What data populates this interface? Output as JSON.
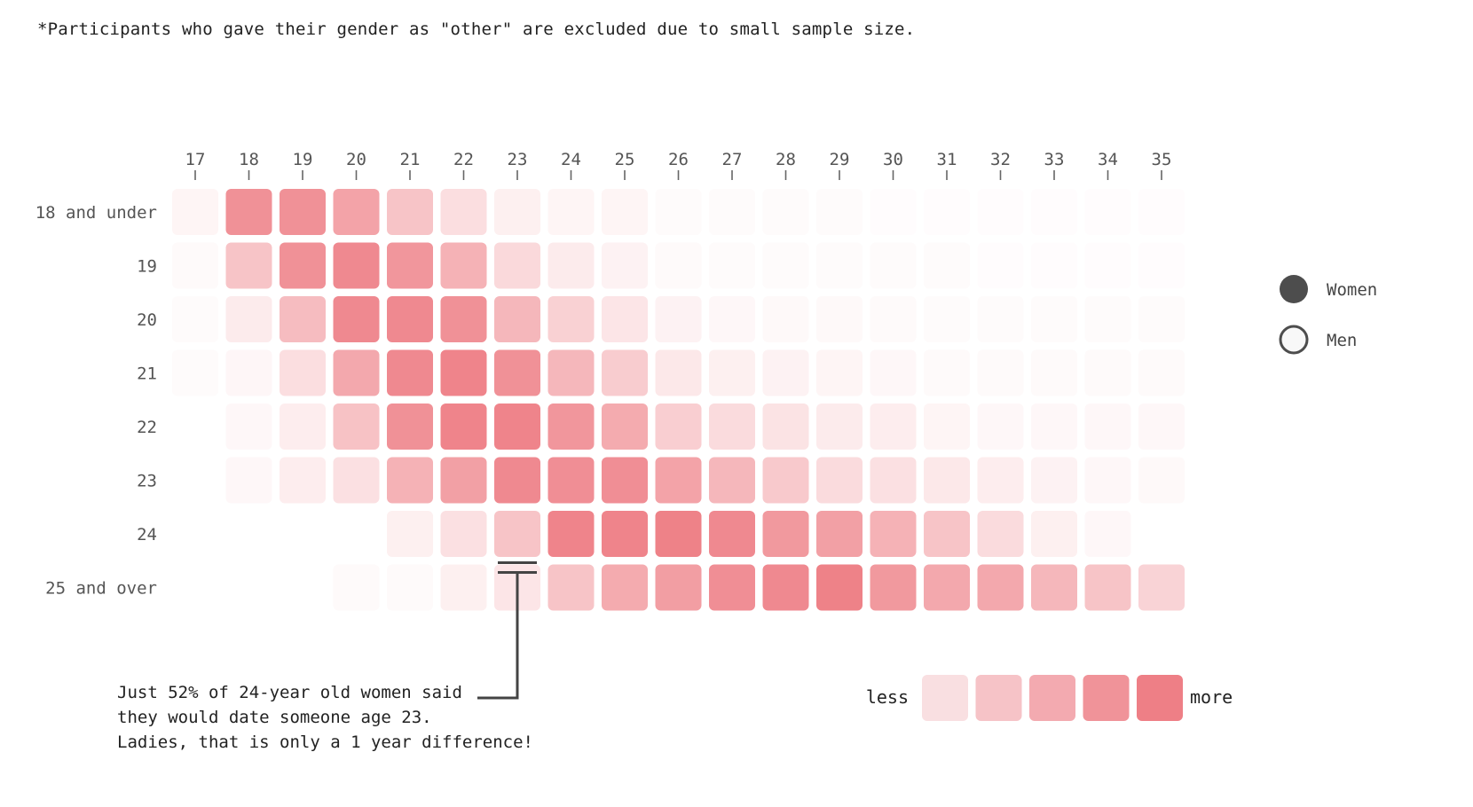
{
  "footnote": "*Participants who gave their gender as \"other\" are excluded due to small sample size.",
  "chart_data": {
    "type": "heatmap",
    "x": [
      17,
      18,
      19,
      20,
      21,
      22,
      23,
      24,
      25,
      26,
      27,
      28,
      29,
      30,
      31,
      32,
      33,
      34,
      35
    ],
    "rows": [
      "18 and under",
      "19",
      "20",
      "21",
      "22",
      "23",
      "24",
      "25 and over"
    ],
    "value_scale": "0-5 (less to more)",
    "values": [
      [
        0.4,
        4.3,
        4.3,
        3.6,
        2.3,
        1.3,
        0.6,
        0.4,
        0.4,
        0.15,
        0.15,
        0.15,
        0.15,
        0.1,
        0.1,
        0.1,
        0.1,
        0.1,
        0.1
      ],
      [
        0.2,
        2.3,
        4.3,
        4.6,
        4.1,
        3.0,
        1.5,
        0.8,
        0.5,
        0.2,
        0.15,
        0.15,
        0.15,
        0.15,
        0.15,
        0.1,
        0.1,
        0.1,
        0.1
      ],
      [
        0.15,
        0.8,
        2.6,
        4.6,
        4.6,
        4.3,
        2.8,
        1.8,
        1.0,
        0.5,
        0.3,
        0.25,
        0.25,
        0.2,
        0.15,
        0.15,
        0.15,
        0.15,
        0.15
      ],
      [
        0.15,
        0.35,
        1.3,
        3.4,
        4.6,
        4.8,
        4.3,
        2.8,
        2.0,
        0.9,
        0.6,
        0.5,
        0.4,
        0.3,
        0.2,
        0.2,
        0.2,
        0.2,
        0.2
      ],
      [
        null,
        0.3,
        0.7,
        2.4,
        4.3,
        4.8,
        4.8,
        4.1,
        3.3,
        1.9,
        1.4,
        1.1,
        0.8,
        0.7,
        0.4,
        0.3,
        0.3,
        0.3,
        0.3
      ],
      [
        null,
        0.3,
        0.7,
        1.2,
        3.0,
        3.7,
        4.6,
        4.4,
        4.4,
        3.6,
        2.8,
        2.1,
        1.4,
        1.2,
        0.9,
        0.7,
        0.5,
        0.3,
        0.25
      ],
      [
        null,
        null,
        null,
        null,
        0.6,
        1.2,
        2.3,
        4.8,
        4.8,
        4.9,
        4.6,
        4.0,
        3.7,
        3.0,
        2.3,
        1.4,
        0.6,
        0.3,
        null
      ],
      [
        null,
        null,
        null,
        0.2,
        0.2,
        0.6,
        1.0,
        2.3,
        3.3,
        3.8,
        4.4,
        4.6,
        4.9,
        4.0,
        3.4,
        3.4,
        2.8,
        2.3,
        1.7
      ]
    ],
    "color_more": "#ee7f86",
    "color_less": "#fbe4e5",
    "highlight": {
      "row": "24",
      "x": 23,
      "marker_row": "25 and over"
    },
    "annotation": [
      "Just 52% of 24-year old women said",
      "they would date someone age 23.",
      "Ladies, that is only a 1 year difference!"
    ],
    "legend": [
      {
        "label": "Women",
        "style": "filled",
        "color": "#4d4d4d"
      },
      {
        "label": "Men",
        "style": "outline",
        "color": "#4d4d4d"
      }
    ],
    "scale_legend": {
      "less": "less",
      "more": "more",
      "levels": [
        "#f9dfe1",
        "#f6c3c7",
        "#f3aab0",
        "#f09399",
        "#ee7f86"
      ]
    }
  }
}
